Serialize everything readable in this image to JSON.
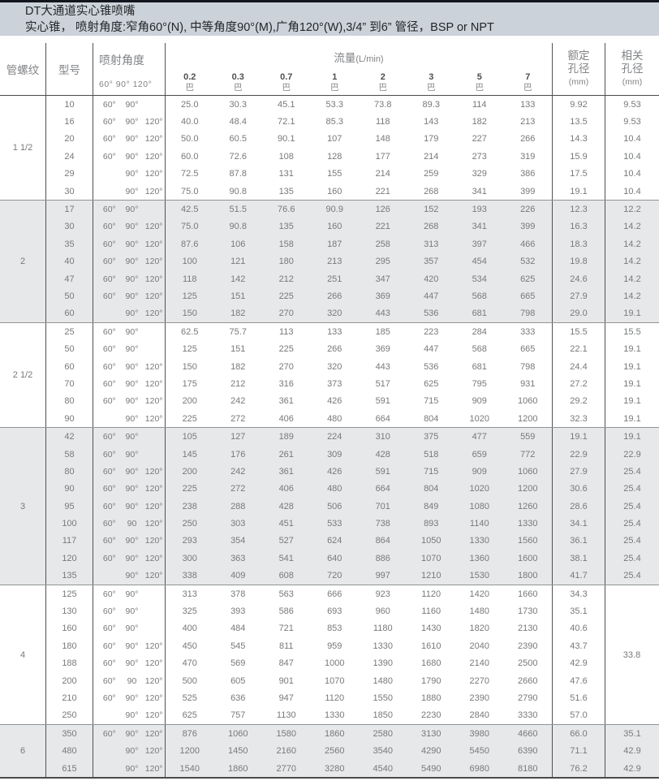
{
  "title_bar": {
    "title": "DT大通道实心锥喷嘴",
    "subtitle": "实心锥， 喷射角度:窄角60°(N), 中等角度90°(M),广角120°(W),3/4” 到6” 管径，BSP or NPT"
  },
  "header": {
    "thread": "管螺纹",
    "model": "型号",
    "angle": "喷射角度",
    "angle_sub": "60° 90° 120°",
    "flow_title": "流量",
    "flow_unit": "(L/min)",
    "bar": "巴",
    "pressures": [
      "0.2",
      "0.3",
      "0.7",
      "1",
      "2",
      "3",
      "5",
      "7"
    ],
    "orifice_line1": "额定",
    "orifice_line2": "孔径",
    "orifice_unit": "(mm)",
    "related_line1": "相关",
    "related_line2": "孔径",
    "related_unit": "(mm)"
  },
  "groups": [
    {
      "thread": "1 1/2",
      "shaded": false,
      "rows": [
        {
          "model": "10",
          "angles": [
            "60°",
            "90°",
            ""
          ],
          "flows": [
            "25.0",
            "30.3",
            "45.1",
            "53.3",
            "73.8",
            "89.3",
            "114",
            "133"
          ],
          "orifice": "9.92",
          "related": "9.53"
        },
        {
          "model": "16",
          "angles": [
            "60°",
            "90°",
            "120°"
          ],
          "flows": [
            "40.0",
            "48.4",
            "72.1",
            "85.3",
            "118",
            "143",
            "182",
            "213"
          ],
          "orifice": "13.5",
          "related": "9.53"
        },
        {
          "model": "20",
          "angles": [
            "60°",
            "90°",
            "120°"
          ],
          "flows": [
            "50.0",
            "60.5",
            "90.1",
            "107",
            "148",
            "179",
            "227",
            "266"
          ],
          "orifice": "14.3",
          "related": "10.4"
        },
        {
          "model": "24",
          "angles": [
            "60°",
            "90°",
            "120°"
          ],
          "flows": [
            "60.0",
            "72.6",
            "108",
            "128",
            "177",
            "214",
            "273",
            "319"
          ],
          "orifice": "15.9",
          "related": "10.4"
        },
        {
          "model": "29",
          "angles": [
            "",
            "90°",
            "120°"
          ],
          "flows": [
            "72.5",
            "87.8",
            "131",
            "155",
            "214",
            "259",
            "329",
            "386"
          ],
          "orifice": "17.5",
          "related": "10.4"
        },
        {
          "model": "30",
          "angles": [
            "",
            "90°",
            "120°"
          ],
          "flows": [
            "75.0",
            "90.8",
            "135",
            "160",
            "221",
            "268",
            "341",
            "399"
          ],
          "orifice": "19.1",
          "related": "10.4"
        }
      ]
    },
    {
      "thread": "2",
      "shaded": true,
      "rows": [
        {
          "model": "17",
          "angles": [
            "60°",
            "90°",
            ""
          ],
          "flows": [
            "42.5",
            "51.5",
            "76.6",
            "90.9",
            "126",
            "152",
            "193",
            "226"
          ],
          "orifice": "12.3",
          "related": "12.2"
        },
        {
          "model": "30",
          "angles": [
            "60°",
            "90°",
            "120°"
          ],
          "flows": [
            "75.0",
            "90.8",
            "135",
            "160",
            "221",
            "268",
            "341",
            "399"
          ],
          "orifice": "16.3",
          "related": "14.2"
        },
        {
          "model": "35",
          "angles": [
            "60°",
            "90°",
            "120°"
          ],
          "flows": [
            "87.6",
            "106",
            "158",
            "187",
            "258",
            "313",
            "397",
            "466"
          ],
          "orifice": "18.3",
          "related": "14.2"
        },
        {
          "model": "40",
          "angles": [
            "60°",
            "90°",
            "120°"
          ],
          "flows": [
            "100",
            "121",
            "180",
            "213",
            "295",
            "357",
            "454",
            "532"
          ],
          "orifice": "19.8",
          "related": "14.2"
        },
        {
          "model": "47",
          "angles": [
            "60°",
            "90°",
            "120°"
          ],
          "flows": [
            "118",
            "142",
            "212",
            "251",
            "347",
            "420",
            "534",
            "625"
          ],
          "orifice": "24.6",
          "related": "14.2"
        },
        {
          "model": "50",
          "angles": [
            "60°",
            "90°",
            "120°"
          ],
          "flows": [
            "125",
            "151",
            "225",
            "266",
            "369",
            "447",
            "568",
            "665"
          ],
          "orifice": "27.9",
          "related": "14.2"
        },
        {
          "model": "60",
          "angles": [
            "",
            "90°",
            "120°"
          ],
          "flows": [
            "150",
            "182",
            "270",
            "320",
            "443",
            "536",
            "681",
            "798"
          ],
          "orifice": "29.0",
          "related": "19.1"
        }
      ]
    },
    {
      "thread": "2 1/2",
      "shaded": false,
      "rows": [
        {
          "model": "25",
          "angles": [
            "60°",
            "90°",
            ""
          ],
          "flows": [
            "62.5",
            "75.7",
            "113",
            "133",
            "185",
            "223",
            "284",
            "333"
          ],
          "orifice": "15.5",
          "related": "15.5"
        },
        {
          "model": "50",
          "angles": [
            "60°",
            "90°",
            ""
          ],
          "flows": [
            "125",
            "151",
            "225",
            "266",
            "369",
            "447",
            "568",
            "665"
          ],
          "orifice": "22.1",
          "related": "19.1"
        },
        {
          "model": "60",
          "angles": [
            "60°",
            "90°",
            "120°"
          ],
          "flows": [
            "150",
            "182",
            "270",
            "320",
            "443",
            "536",
            "681",
            "798"
          ],
          "orifice": "24.4",
          "related": "19.1"
        },
        {
          "model": "70",
          "angles": [
            "60°",
            "90°",
            "120°"
          ],
          "flows": [
            "175",
            "212",
            "316",
            "373",
            "517",
            "625",
            "795",
            "931"
          ],
          "orifice": "27.2",
          "related": "19.1"
        },
        {
          "model": "80",
          "angles": [
            "60°",
            "90°",
            "120°"
          ],
          "flows": [
            "200",
            "242",
            "361",
            "426",
            "591",
            "715",
            "909",
            "1060"
          ],
          "orifice": "29.2",
          "related": "19.1"
        },
        {
          "model": "90",
          "angles": [
            "",
            "90°",
            "120°"
          ],
          "flows": [
            "225",
            "272",
            "406",
            "480",
            "664",
            "804",
            "1020",
            "1200"
          ],
          "orifice": "32.3",
          "related": "19.1"
        }
      ]
    },
    {
      "thread": "3",
      "shaded": true,
      "rows": [
        {
          "model": "42",
          "angles": [
            "60°",
            "90°",
            ""
          ],
          "flows": [
            "105",
            "127",
            "189",
            "224",
            "310",
            "375",
            "477",
            "559"
          ],
          "orifice": "19.1",
          "related": "19.1"
        },
        {
          "model": "58",
          "angles": [
            "60°",
            "90°",
            ""
          ],
          "flows": [
            "145",
            "176",
            "261",
            "309",
            "428",
            "518",
            "659",
            "772"
          ],
          "orifice": "22.9",
          "related": "22.9"
        },
        {
          "model": "80",
          "angles": [
            "60°",
            "90°",
            "120°"
          ],
          "flows": [
            "200",
            "242",
            "361",
            "426",
            "591",
            "715",
            "909",
            "1060"
          ],
          "orifice": "27.9",
          "related": "25.4"
        },
        {
          "model": "90",
          "angles": [
            "60°",
            "90°",
            "120°"
          ],
          "flows": [
            "225",
            "272",
            "406",
            "480",
            "664",
            "804",
            "1020",
            "1200"
          ],
          "orifice": "30.6",
          "related": "25.4"
        },
        {
          "model": "95",
          "angles": [
            "60°",
            "90°",
            "120°"
          ],
          "flows": [
            "238",
            "288",
            "428",
            "506",
            "701",
            "849",
            "1080",
            "1260"
          ],
          "orifice": "28.6",
          "related": "25.4"
        },
        {
          "model": "100",
          "angles": [
            "60°",
            "90",
            "120°"
          ],
          "flows": [
            "250",
            "303",
            "451",
            "533",
            "738",
            "893",
            "1140",
            "1330"
          ],
          "orifice": "34.1",
          "related": "25.4"
        },
        {
          "model": "117",
          "angles": [
            "60°",
            "90°",
            "120°"
          ],
          "flows": [
            "293",
            "354",
            "527",
            "624",
            "864",
            "1050",
            "1330",
            "1560"
          ],
          "orifice": "36.1",
          "related": "25.4"
        },
        {
          "model": "120",
          "angles": [
            "60°",
            "90°",
            "120°"
          ],
          "flows": [
            "300",
            "363",
            "541",
            "640",
            "886",
            "1070",
            "1360",
            "1600"
          ],
          "orifice": "38.1",
          "related": "25.4"
        },
        {
          "model": "135",
          "angles": [
            "",
            "90°",
            "120°"
          ],
          "flows": [
            "338",
            "409",
            "608",
            "720",
            "997",
            "1210",
            "1530",
            "1800"
          ],
          "orifice": "41.7",
          "related": "25.4"
        }
      ]
    },
    {
      "thread": "4",
      "shaded": false,
      "related_merged": "33.8",
      "rows": [
        {
          "model": "125",
          "angles": [
            "60°",
            "90°",
            ""
          ],
          "flows": [
            "313",
            "378",
            "563",
            "666",
            "923",
            "1120",
            "1420",
            "1660"
          ],
          "orifice": "34.3",
          "related": ""
        },
        {
          "model": "130",
          "angles": [
            "60°",
            "90°",
            ""
          ],
          "flows": [
            "325",
            "393",
            "586",
            "693",
            "960",
            "1160",
            "1480",
            "1730"
          ],
          "orifice": "35.1",
          "related": ""
        },
        {
          "model": "160",
          "angles": [
            "60°",
            "90°",
            ""
          ],
          "flows": [
            "400",
            "484",
            "721",
            "853",
            "1180",
            "1430",
            "1820",
            "2130"
          ],
          "orifice": "40.6",
          "related": ""
        },
        {
          "model": "180",
          "angles": [
            "60°",
            "90°",
            "120°"
          ],
          "flows": [
            "450",
            "545",
            "811",
            "959",
            "1330",
            "1610",
            "2040",
            "2390"
          ],
          "orifice": "43.7",
          "related": ""
        },
        {
          "model": "188",
          "angles": [
            "60°",
            "90°",
            "120°"
          ],
          "flows": [
            "470",
            "569",
            "847",
            "1000",
            "1390",
            "1680",
            "2140",
            "2500"
          ],
          "orifice": "42.9",
          "related": ""
        },
        {
          "model": "200",
          "angles": [
            "60°",
            "90",
            "120°"
          ],
          "flows": [
            "500",
            "605",
            "901",
            "1070",
            "1480",
            "1790",
            "2270",
            "2660"
          ],
          "orifice": "47.6",
          "related": ""
        },
        {
          "model": "210",
          "angles": [
            "60°",
            "90°",
            "120°"
          ],
          "flows": [
            "525",
            "636",
            "947",
            "1120",
            "1550",
            "1880",
            "2390",
            "2790"
          ],
          "orifice": "51.6",
          "related": ""
        },
        {
          "model": "250",
          "angles": [
            "",
            "90°",
            "120°"
          ],
          "flows": [
            "625",
            "757",
            "1130",
            "1330",
            "1850",
            "2230",
            "2840",
            "3330"
          ],
          "orifice": "57.0",
          "related": ""
        }
      ]
    },
    {
      "thread": "6",
      "shaded": true,
      "rows": [
        {
          "model": "350",
          "angles": [
            "60°",
            "90°",
            "120°"
          ],
          "flows": [
            "876",
            "1060",
            "1580",
            "1860",
            "2580",
            "3130",
            "3980",
            "4660"
          ],
          "orifice": "66.0",
          "related": "35.1"
        },
        {
          "model": "480",
          "angles": [
            "",
            "90°",
            "120°"
          ],
          "flows": [
            "1200",
            "1450",
            "2160",
            "2560",
            "3540",
            "4290",
            "5450",
            "6390"
          ],
          "orifice": "71.1",
          "related": "42.9"
        },
        {
          "model": "615",
          "angles": [
            "",
            "90°",
            "120°"
          ],
          "flows": [
            "1540",
            "1860",
            "2770",
            "3280",
            "4540",
            "5490",
            "6980",
            "8180"
          ],
          "orifice": "76.2",
          "related": "42.9"
        }
      ]
    }
  ]
}
